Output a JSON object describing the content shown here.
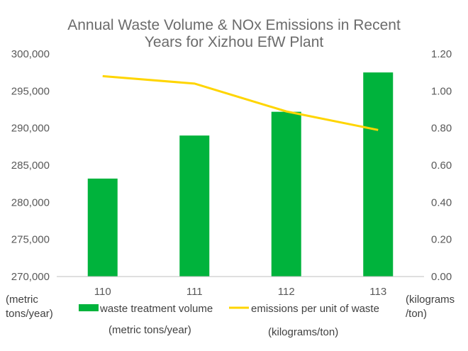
{
  "chart_data": {
    "type": "bar",
    "title_lines": [
      "Annual Waste Volume & NOx Emissions in Recent",
      "Years for Xizhou EfW Plant"
    ],
    "categories": [
      "110",
      "111",
      "112",
      "113"
    ],
    "series": [
      {
        "name": "waste treatment volume",
        "type": "bar",
        "axis": "left",
        "values": [
          283200,
          289000,
          292200,
          297500
        ],
        "color": "#00b33c"
      },
      {
        "name": "emissions per unit of waste",
        "type": "line",
        "axis": "right",
        "values": [
          1.08,
          1.04,
          0.89,
          0.79
        ],
        "color": "#ffd500"
      }
    ],
    "y_left": {
      "min": 270000,
      "max": 300000,
      "ticks": [
        "270,000",
        "275,000",
        "280,000",
        "285,000",
        "290,000",
        "295,000",
        "300,000"
      ],
      "unit_label": [
        "(metric",
        "tons/year)"
      ]
    },
    "y_right": {
      "min": 0,
      "max": 1.2,
      "ticks": [
        "0.00",
        "0.20",
        "0.40",
        "0.60",
        "0.80",
        "1.00",
        "1.20"
      ],
      "unit_label": [
        "(kilograms",
        "/ton)"
      ]
    },
    "legend": {
      "position": "bottom",
      "unit_notes": [
        "(metric tons/year)",
        "(kilograms/ton)"
      ]
    },
    "grid": false
  }
}
